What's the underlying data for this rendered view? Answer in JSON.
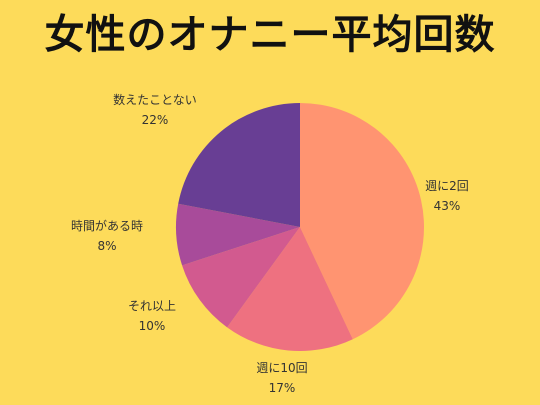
{
  "chart_data": {
    "type": "pie",
    "title": "女性のオナニー平均回数",
    "slices": [
      {
        "label": "週に2回",
        "value": 43,
        "value_label": "43%",
        "color": "#FF9471"
      },
      {
        "label": "週に10回",
        "value": 17,
        "value_label": "17%",
        "color": "#EE7180"
      },
      {
        "label": "それ以上",
        "value": 10,
        "value_label": "10%",
        "color": "#D25A8F"
      },
      {
        "label": "時間がある時",
        "value": 8,
        "value_label": "8%",
        "color": "#A84B9A"
      },
      {
        "label": "数えたことない",
        "value": 22,
        "value_label": "22%",
        "color": "#683E94"
      }
    ],
    "start": "12 o'clock",
    "direction": "clockwise",
    "legend": "none"
  }
}
